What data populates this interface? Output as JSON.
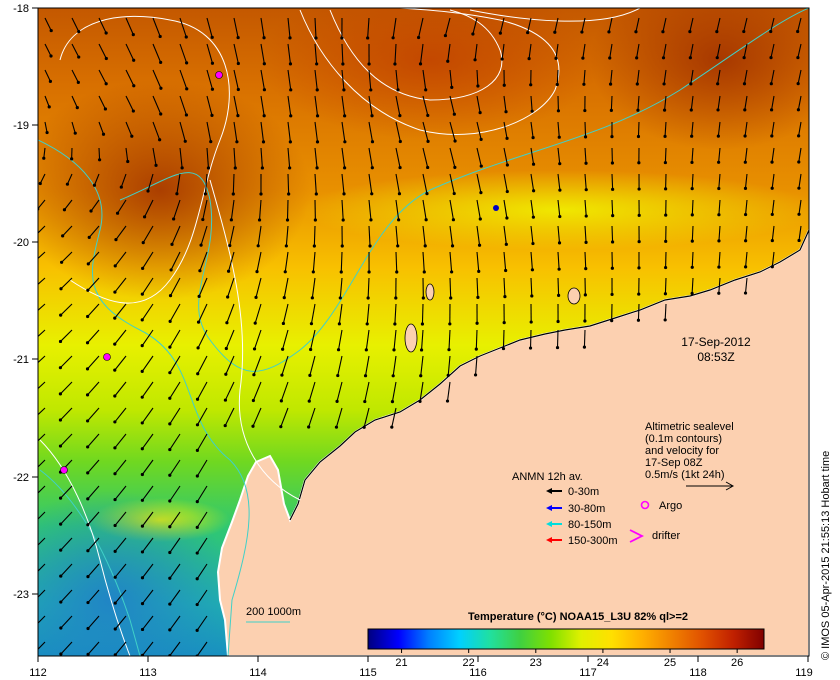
{
  "map": {
    "axes": {
      "x_ticks": [
        "112",
        "113",
        "114",
        "115",
        "116",
        "117",
        "118",
        "119"
      ],
      "y_ticks": [
        "-18",
        "-19",
        "-20",
        "-21",
        "-22",
        "-23"
      ],
      "lon_range": [
        112,
        119
      ],
      "lat_range": [
        -23.6,
        -18
      ]
    },
    "timestamp": {
      "date": "17-Sep-2012",
      "time": "08:53Z"
    },
    "altimetry_note": {
      "lines": [
        "Altimetric sealevel",
        "(0.1m contours)",
        "and velocity for",
        "17-Sep 08Z",
        "0.5m/s (1kt 24h)"
      ]
    },
    "legend": {
      "title": "ANMN 12h av.",
      "items": [
        {
          "label": "0-30m",
          "color": "#000000"
        },
        {
          "label": "30-80m",
          "color": "#0000ff"
        },
        {
          "label": "80-150m",
          "color": "#00dddd"
        },
        {
          "label": "150-300m",
          "color": "#ff0000"
        }
      ],
      "argo_label": "Argo",
      "drifter_label": "drifter"
    },
    "bathymetry_legend": "200  1000m",
    "colorbar": {
      "title": "Temperature (°C) NOAA15_L3U 82% ql>=2",
      "ticks": [
        "21",
        "22",
        "23",
        "24",
        "25",
        "26"
      ],
      "range": [
        20.5,
        26.4
      ],
      "colors": [
        "#00007f",
        "#0000ff",
        "#0080ff",
        "#00d0ff",
        "#20e0a0",
        "#40d040",
        "#80e000",
        "#e0f000",
        "#ffe000",
        "#ffb000",
        "#f08000",
        "#e05000",
        "#c02000",
        "#800000"
      ]
    },
    "credit": "© IMOS 05-Apr-2015 21:55:13 Hobart time",
    "colors": {
      "land": "#fcd0b0",
      "argo": "#ff00ff",
      "contour": "#ffffff",
      "bathy": "#40d0c8"
    }
  }
}
